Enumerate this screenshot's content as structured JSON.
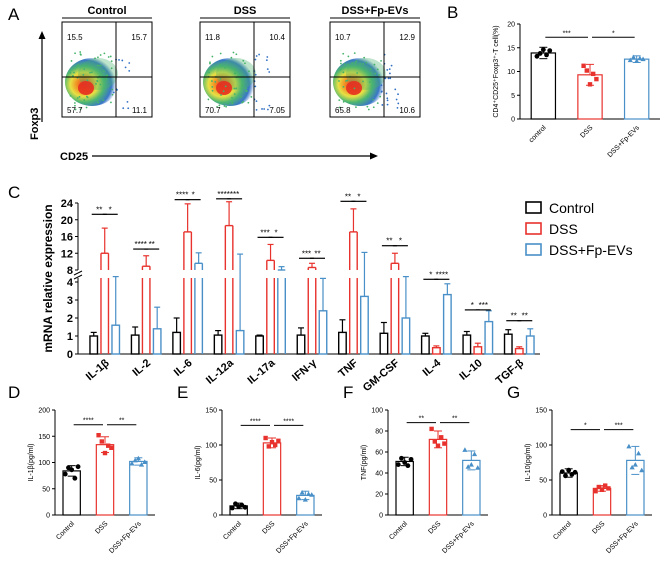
{
  "panels": {
    "A": "A",
    "B": "B",
    "C": "C",
    "D": "D",
    "E": "E",
    "F": "F",
    "G": "G"
  },
  "colors": {
    "control": "#000000",
    "dss": "#e8322d",
    "fp": "#4a90c8"
  },
  "flow": {
    "ylabel": "Foxp3",
    "xlabel": "CD25",
    "plots": [
      {
        "title": "Control",
        "q1": "15.5",
        "q2": "15.7",
        "q3": "57.7",
        "q4": "11.1"
      },
      {
        "title": "DSS",
        "q1": "11.8",
        "q2": "10.4",
        "q3": "70.7",
        "q4": "7.05"
      },
      {
        "title": "DSS+Fp-EVs",
        "q1": "10.7",
        "q2": "12.9",
        "q3": "65.8",
        "q4": "10.6"
      }
    ]
  },
  "chart_data": [
    {
      "id": "B",
      "type": "bar",
      "ylabel": "CD4⁺CD25⁺Foxp3⁺-T cell(%)",
      "categories": [
        "control",
        "DSS",
        "DSS+Fp-EVs"
      ],
      "values": [
        13.9,
        9.3,
        12.6
      ],
      "errors": [
        1.2,
        2.2,
        0.7
      ],
      "ylim": [
        0,
        20
      ],
      "yticks": [
        "0",
        "5",
        "10",
        "15",
        "20"
      ],
      "points": [
        [
          13.2,
          13.8,
          14.6,
          13.5,
          14.4
        ],
        [
          11.2,
          10.2,
          7.3,
          9.5,
          8.4
        ],
        [
          12.4,
          13.0,
          12.2,
          12.8,
          12.6
        ]
      ],
      "sig": [
        {
          "label": "***",
          "from": 0,
          "to": 1,
          "y": 17.2
        },
        {
          "label": "*",
          "from": 1,
          "to": 2,
          "y": 17.2
        }
      ]
    },
    {
      "id": "C",
      "type": "bar",
      "ylabel": "mRNA relative expression",
      "categories": [
        "IL-1β",
        "IL-2",
        "IL-6",
        "IL-12a",
        "IL-17a",
        "IFN-γ",
        "TNF",
        "GM-CSF",
        "IL-4",
        "IL-10",
        "TGF-β"
      ],
      "series": [
        {
          "name": "Control",
          "values": [
            1.0,
            1.05,
            1.2,
            1.05,
            1.0,
            1.05,
            1.2,
            1.15,
            1.0,
            1.05,
            1.1
          ],
          "errors": [
            0.2,
            0.45,
            0.8,
            0.25,
            0.05,
            0.4,
            0.7,
            0.6,
            0.15,
            0.2,
            0.25
          ]
        },
        {
          "name": "DSS",
          "values": [
            12.0,
            8.9,
            17.1,
            18.6,
            10.3,
            8.6,
            17.1,
            9.6,
            0.35,
            0.4,
            0.3
          ],
          "errors": [
            6.0,
            2.5,
            6.7,
            5.7,
            3.8,
            1.0,
            5.5,
            2.4,
            0.1,
            0.2,
            0.1
          ]
        },
        {
          "name": "DSS+Fp-EVs",
          "values": [
            1.6,
            1.4,
            9.6,
            1.3,
            8.0,
            2.4,
            3.2,
            2.0,
            3.3,
            1.8,
            1.0
          ],
          "errors": [
            4.0,
            1.2,
            2.5,
            10.5,
            0.8,
            1.8,
            9.0,
            4.0,
            0.6,
            0.6,
            0.4
          ]
        }
      ],
      "yticks_lower": [
        "0",
        "1",
        "2",
        "3",
        "4"
      ],
      "yticks_upper": [
        "8",
        "12",
        "16",
        "20",
        "24"
      ],
      "sig": [
        {
          "label": "**",
          "from": "0a",
          "to": "0b",
          "y": 21.3
        },
        {
          "label": "*",
          "from": "0b",
          "to": "0c",
          "y": 21.3
        },
        {
          "label": "****",
          "from": "1a",
          "to": "1b",
          "y": 13.0
        },
        {
          "label": "**",
          "from": "1b",
          "to": "1c",
          "y": 13.0
        },
        {
          "label": "****",
          "from": "2a",
          "to": "2b",
          "y": 24.8
        },
        {
          "label": "*",
          "from": "2b",
          "to": "2c",
          "y": 24.8
        },
        {
          "label": "****",
          "from": "3a",
          "to": "3b",
          "y": 25.0
        },
        {
          "label": "***",
          "from": "3b",
          "to": "3c",
          "y": 25.0
        },
        {
          "label": "***",
          "from": "4a",
          "to": "4b",
          "y": 15.8
        },
        {
          "label": "*",
          "from": "4b",
          "to": "4c",
          "y": 15.8
        },
        {
          "label": "***",
          "from": "5a",
          "to": "5b",
          "y": 10.8
        },
        {
          "label": "**",
          "from": "5b",
          "to": "5c",
          "y": 10.8
        },
        {
          "label": "**",
          "from": "6a",
          "to": "6b",
          "y": 24.4
        },
        {
          "label": "*",
          "from": "6b",
          "to": "6c",
          "y": 24.4
        },
        {
          "label": "**",
          "from": "7a",
          "to": "7b",
          "y": 13.8
        },
        {
          "label": "*",
          "from": "7b",
          "to": "7c",
          "y": 13.8
        },
        {
          "label": "*",
          "from": "8a",
          "to": "8b",
          "y": 4.15
        },
        {
          "label": "****",
          "from": "8b",
          "to": "8c",
          "y": 4.15
        },
        {
          "label": "*",
          "from": "9a",
          "to": "9b",
          "y": 2.45
        },
        {
          "label": "***",
          "from": "9b",
          "to": "9c",
          "y": 2.45
        },
        {
          "label": "**",
          "from": "10a",
          "to": "10b",
          "y": 1.85
        },
        {
          "label": "**",
          "from": "10b",
          "to": "10c",
          "y": 1.85
        }
      ]
    },
    {
      "id": "D",
      "type": "bar",
      "ylabel": "IL-1β(pg/ml)",
      "categories": [
        "Control",
        "DSS",
        "DSS+Fp-EVs"
      ],
      "values": [
        84,
        134,
        102
      ],
      "errors": [
        10,
        15,
        7
      ],
      "ylim": [
        0,
        200
      ],
      "yticks": [
        "0",
        "50",
        "100",
        "150",
        "200"
      ],
      "points": [
        [
          78,
          90,
          86,
          70,
          92
        ],
        [
          152,
          140,
          118,
          132,
          128
        ],
        [
          98,
          104,
          108,
          96,
          101
        ]
      ],
      "sig": [
        {
          "label": "****",
          "from": 0,
          "to": 1,
          "y": 172
        },
        {
          "label": "**",
          "from": 1,
          "to": 2,
          "y": 172
        }
      ]
    },
    {
      "id": "E",
      "type": "bar",
      "ylabel": "IL-6(pg/ml)",
      "categories": [
        "Control",
        "DSS",
        "DSS+Fp-EVs"
      ],
      "values": [
        13,
        103,
        28
      ],
      "errors": [
        4,
        7,
        6
      ],
      "ylim": [
        0,
        150
      ],
      "yticks": [
        "0",
        "50",
        "100",
        "150"
      ],
      "points": [
        [
          10,
          16,
          12,
          14,
          11
        ],
        [
          110,
          98,
          104,
          100,
          106
        ],
        [
          24,
          32,
          22,
          30,
          29
        ]
      ],
      "sig": [
        {
          "label": "****",
          "from": 0,
          "to": 1,
          "y": 128
        },
        {
          "label": "****",
          "from": 1,
          "to": 2,
          "y": 128
        }
      ]
    },
    {
      "id": "F",
      "type": "bar",
      "ylabel": "TNF(pg/ml)",
      "categories": [
        "Control",
        "DSS",
        "DSS+Fp-EVs"
      ],
      "values": [
        51,
        72,
        52
      ],
      "errors": [
        4,
        8,
        9
      ],
      "ylim": [
        0,
        100
      ],
      "yticks": [
        "0",
        "20",
        "40",
        "60",
        "80",
        "100"
      ],
      "points": [
        [
          48,
          54,
          50,
          47,
          53
        ],
        [
          82,
          70,
          66,
          74,
          68
        ],
        [
          62,
          46,
          48,
          58,
          45
        ]
      ],
      "sig": [
        {
          "label": "**",
          "from": 0,
          "to": 1,
          "y": 88
        },
        {
          "label": "**",
          "from": 1,
          "to": 2,
          "y": 88
        }
      ]
    },
    {
      "id": "G",
      "type": "bar",
      "ylabel": "IL-10(pg/ml)",
      "categories": [
        "Control",
        "DSS",
        "DSS+Fp-EVs"
      ],
      "values": [
        60,
        38,
        78
      ],
      "errors": [
        6,
        4,
        20
      ],
      "ylim": [
        0,
        150
      ],
      "yticks": [
        "0",
        "50",
        "100",
        "150"
      ],
      "points": [
        [
          62,
          56,
          64,
          58,
          61
        ],
        [
          34,
          40,
          36,
          42,
          38
        ],
        [
          98,
          68,
          72,
          88,
          64
        ]
      ],
      "sig": [
        {
          "label": "*",
          "from": 0,
          "to": 1,
          "y": 122
        },
        {
          "label": "***",
          "from": 1,
          "to": 2,
          "y": 122
        }
      ]
    }
  ]
}
